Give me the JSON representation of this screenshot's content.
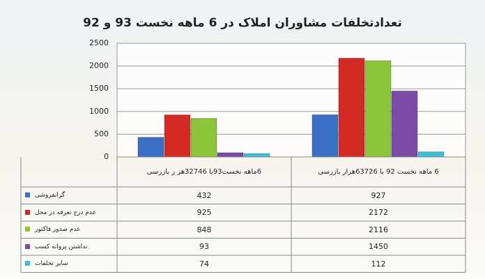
{
  "chart_data": {
    "type": "bar",
    "title": "تعدادتخلفات مشاوران املاک در 6 ماهه نخست 93 و 92",
    "categories": [
      "6ماهه نخست93با 32746هز ر بازرسی",
      "6 ماهه نخست 92 با 63726هزار بازرسی"
    ],
    "series": [
      {
        "name": "گرانفروشی",
        "color": "#3b6fc6",
        "values": [
          432,
          927
        ]
      },
      {
        "name": "عدم درج تعرفه در محل",
        "color": "#d42a25",
        "values": [
          925,
          2172
        ]
      },
      {
        "name": "عدم صدور فاکتور",
        "color": "#8cc43a",
        "values": [
          848,
          2116
        ]
      },
      {
        "name": "نداشتن پروانه کسب",
        "color": "#7a4aa6",
        "values": [
          93,
          1450
        ]
      },
      {
        "name": "سایر تخلفات",
        "color": "#3cc0d8",
        "values": [
          74,
          112
        ]
      }
    ],
    "ylim": [
      0,
      2500
    ],
    "yticks": [
      0,
      500,
      1000,
      1500,
      2000,
      2500
    ],
    "grid": true
  }
}
